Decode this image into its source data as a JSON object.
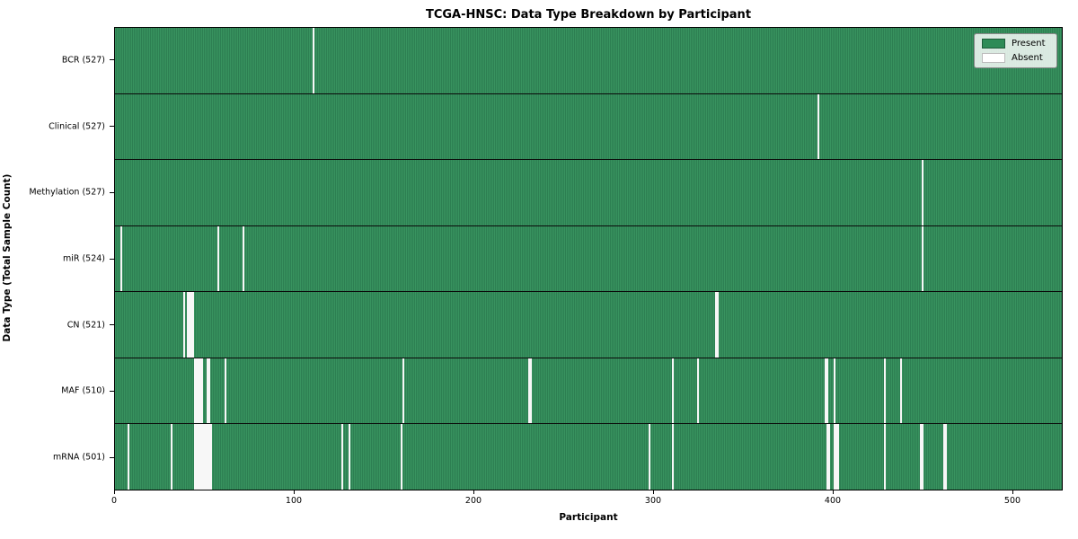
{
  "chart_data": {
    "type": "heatmap",
    "title": "TCGA-HNSC: Data Type Breakdown by Participant",
    "xlabel": "Participant",
    "ylabel": "Data Type (Total Sample Count)",
    "xlim": [
      0,
      528
    ],
    "x_ticks": [
      0,
      100,
      200,
      300,
      400,
      500
    ],
    "grid": false,
    "legend": {
      "position": "upper right",
      "entries": [
        {
          "label": "Present",
          "color": "#2e8b57",
          "edge": "#1d5c39"
        },
        {
          "label": "Absent",
          "color": "#ffffff",
          "edge": "#bbbbbb"
        }
      ]
    },
    "colors": {
      "present_light": "#38935f",
      "present_dark": "#226b44",
      "absent": "#f7f7f7",
      "row_divider": "#0a0a0a"
    },
    "rows": [
      {
        "label": "BCR (527)",
        "data_type": "BCR",
        "present_count": 527,
        "absent_participants": [
          110
        ]
      },
      {
        "label": "Clinical (527)",
        "data_type": "Clinical",
        "present_count": 527,
        "absent_participants": [
          391
        ]
      },
      {
        "label": "Methylation (527)",
        "data_type": "Methylation",
        "present_count": 527,
        "absent_participants": [
          449
        ]
      },
      {
        "label": "miR (524)",
        "data_type": "miR",
        "present_count": 524,
        "absent_participants": [
          3,
          57,
          71,
          449
        ]
      },
      {
        "label": "CN (521)",
        "data_type": "CN",
        "present_count": 521,
        "absent_participants": [
          38,
          40,
          41,
          42,
          43,
          334,
          335
        ]
      },
      {
        "label": "MAF (510)",
        "data_type": "MAF",
        "present_count": 510,
        "absent_participants": [
          44,
          45,
          46,
          47,
          48,
          51,
          52,
          61,
          160,
          230,
          231,
          310,
          324,
          395,
          396,
          400,
          428,
          437
        ]
      },
      {
        "label": "mRNA (501)",
        "data_type": "mRNA",
        "present_count": 501,
        "absent_participants": [
          7,
          31,
          44,
          45,
          46,
          47,
          48,
          49,
          50,
          51,
          52,
          53,
          126,
          130,
          159,
          297,
          310,
          396,
          397,
          400,
          401,
          402,
          428,
          448,
          449,
          461,
          462
        ]
      }
    ]
  }
}
